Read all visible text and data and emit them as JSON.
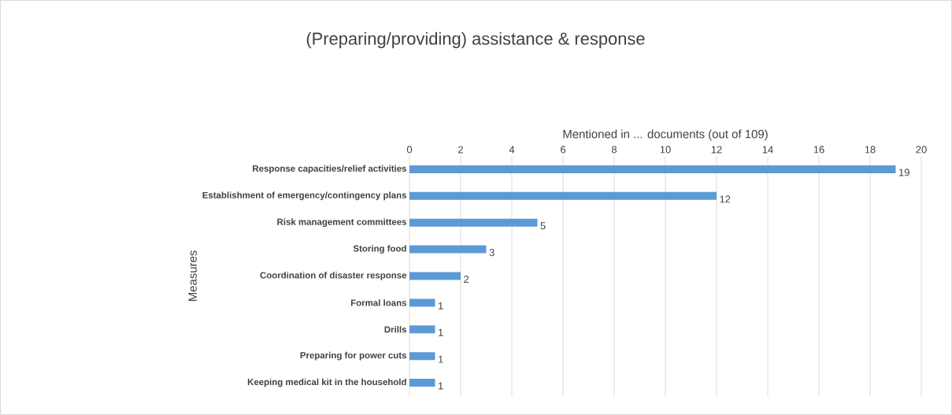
{
  "chart_data": {
    "type": "bar",
    "orientation": "horizontal",
    "title": "(Preparing/providing) assistance & response",
    "xlabel": "Mentioned in ... documents (out of 109)",
    "ylabel": "Measures",
    "categories": [
      "Response capacities/relief activities",
      "Establishment of emergency/contingency plans",
      "Risk management committees",
      "Storing food",
      "Coordination of disaster response",
      "Formal loans",
      "Drills",
      "Preparing for power cuts",
      "Keeping medical kit in the household"
    ],
    "values": [
      19,
      12,
      5,
      3,
      2,
      1,
      1,
      1,
      1
    ],
    "color": "#5b9bd5",
    "xlim": [
      0,
      20
    ],
    "xticks": [
      0,
      2,
      4,
      6,
      8,
      10,
      12,
      14,
      16,
      18,
      20
    ],
    "grid": "x",
    "data_labels": true
  }
}
